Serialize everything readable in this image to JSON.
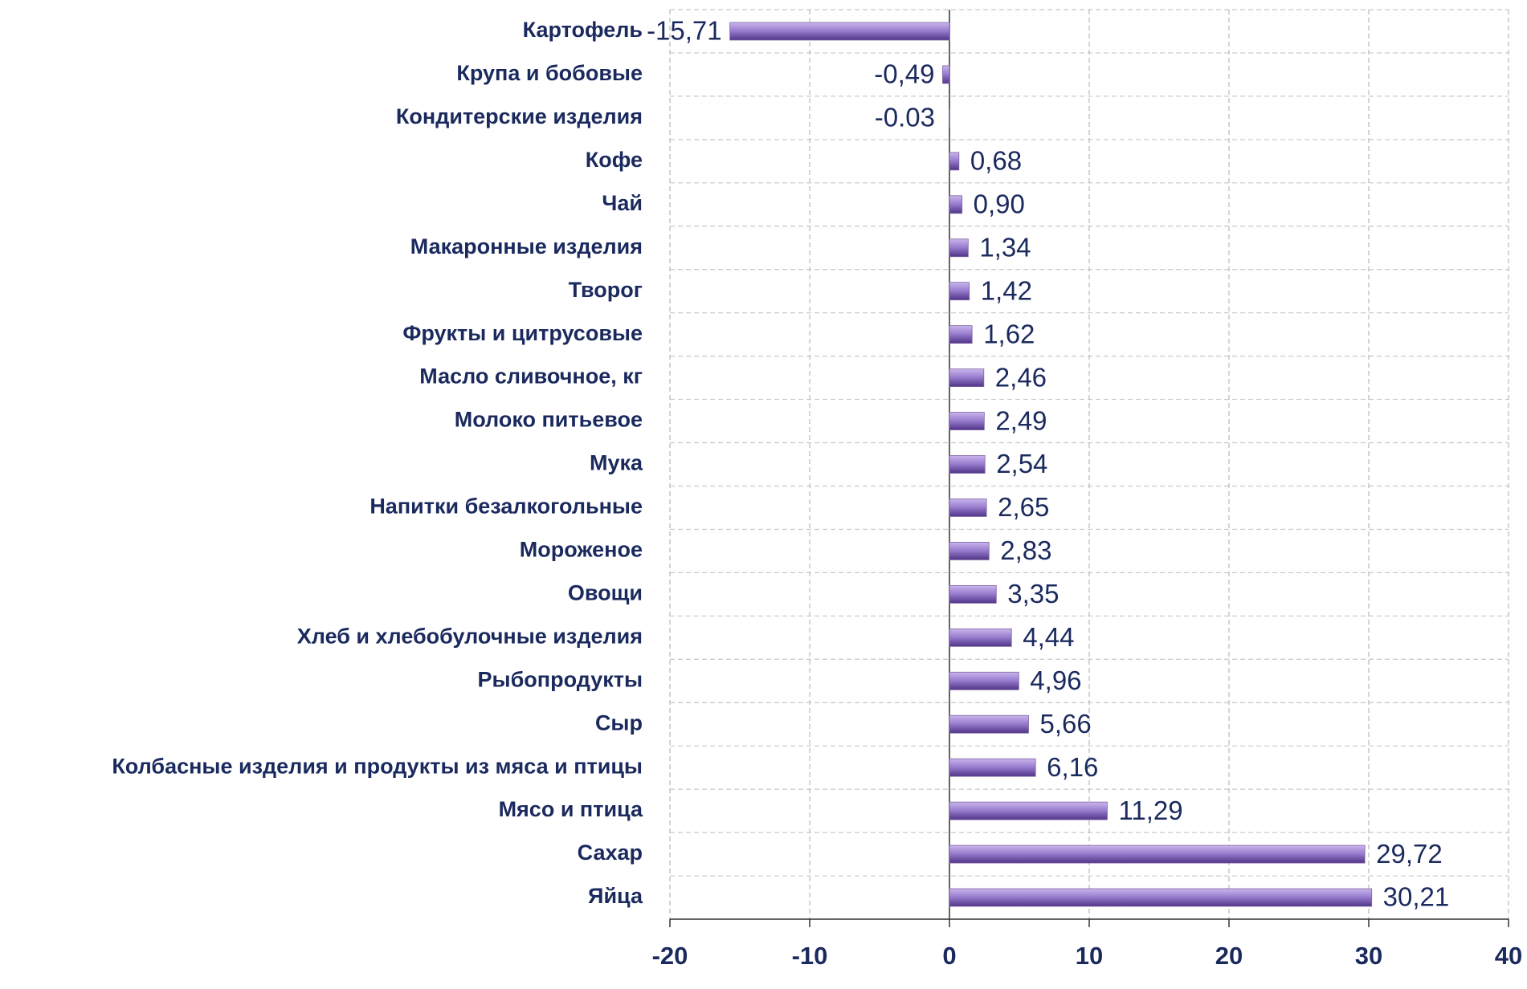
{
  "chart_data": {
    "type": "barh",
    "categories": [
      "Картофель",
      "Крупа и бобовые",
      "Кондитерские изделия",
      "Кофе",
      "Чай",
      "Макаронные изделия",
      "Творог",
      "Фрукты и цитрусовые",
      "Масло сливочное, кг",
      "Молоко питьевое",
      "Мука",
      "Напитки безалкогольные",
      "Мороженое",
      "Овощи",
      "Хлеб и хлебобулочные изделия",
      "Рыбопродукты",
      "Сыр",
      "Колбасные изделия и продукты из мяса и птицы",
      "Мясо и птица",
      "Сахар",
      "Яйца"
    ],
    "values": [
      -15.71,
      -0.49,
      -0.03,
      0.68,
      0.9,
      1.34,
      1.42,
      1.62,
      2.46,
      2.49,
      2.54,
      2.65,
      2.83,
      3.35,
      4.44,
      4.96,
      5.66,
      6.16,
      11.29,
      29.72,
      30.21
    ],
    "value_labels": [
      "-15,71",
      "-0,49",
      "-0.03",
      "0,68",
      "0,90",
      "1,34",
      "1,42",
      "1,62",
      "2,46",
      "2,49",
      "2,54",
      "2,65",
      "2,83",
      "3,35",
      "4,44",
      "4,96",
      "5,66",
      "6,16",
      "11,29",
      "29,72",
      "30,21"
    ],
    "color": "#8064a2",
    "xlim": [
      -20,
      40
    ],
    "xticks": [
      -20,
      -10,
      0,
      10,
      20,
      30,
      40
    ],
    "grid": true
  }
}
